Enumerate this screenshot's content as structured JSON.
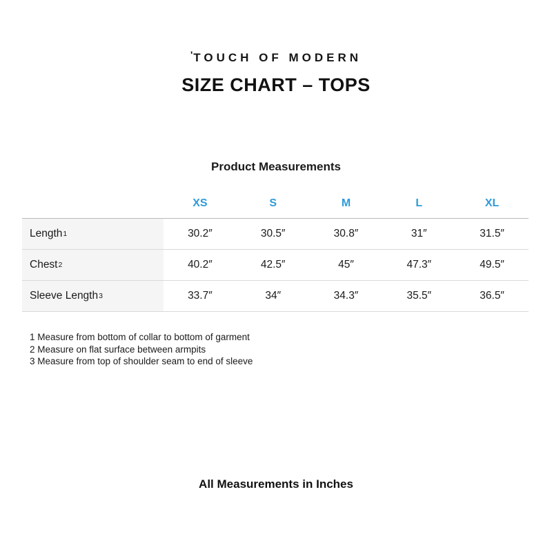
{
  "logo": {
    "mark": "'",
    "text": "TOUCH OF MODERN"
  },
  "title": "SIZE CHART – TOPS",
  "section_heading": "Product Measurements",
  "chart_data": {
    "type": "table",
    "columns": [
      "XS",
      "S",
      "M",
      "L",
      "XL"
    ],
    "rows": [
      {
        "label": "Length",
        "sup": "1",
        "values": [
          "30.2″",
          "30.5″",
          "30.8″",
          "31″",
          "31.5″"
        ]
      },
      {
        "label": "Chest",
        "sup": "2",
        "values": [
          "40.2″",
          "42.5″",
          "45″",
          "47.3″",
          "49.5″"
        ]
      },
      {
        "label": "Sleeve Length",
        "sup": "3",
        "values": [
          "33.7″",
          "34″",
          "34.3″",
          "35.5″",
          "36.5″"
        ]
      }
    ]
  },
  "footnotes": [
    "1 Measure from bottom of collar to bottom of garment",
    "2 Measure on flat surface between armpits",
    "3 Measure from top of shoulder seam to end of sleeve"
  ],
  "footer": "All Measurements in Inches",
  "colors": {
    "accent_blue": "#2E9BD8",
    "label_column_bg": "#f5f5f5",
    "table_border_top": "#b9b9b9",
    "table_border_row": "#d9d9d9",
    "text": "#1a1a1a"
  }
}
